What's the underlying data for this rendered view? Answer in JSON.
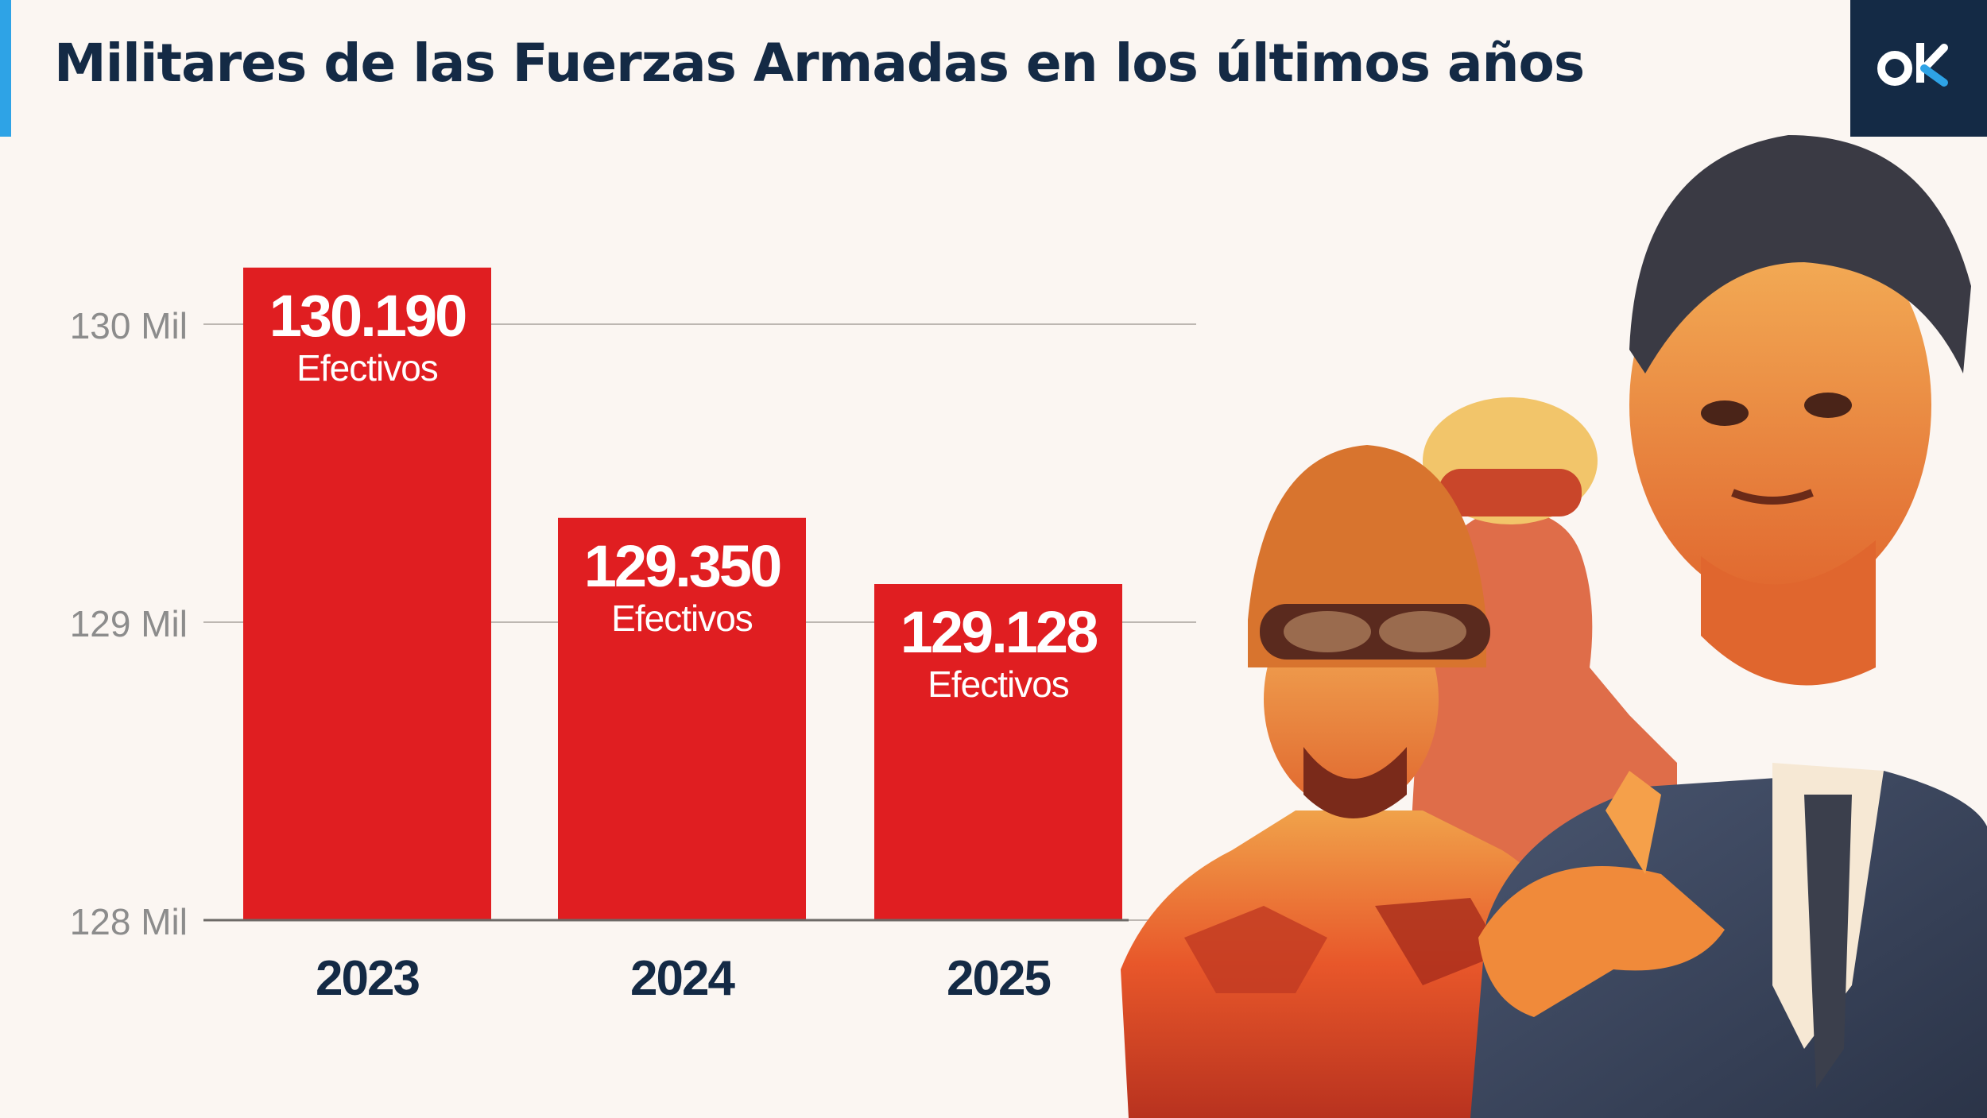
{
  "header": {
    "title": "Militares de las Fuerzas Armadas en los últimos años"
  },
  "logo": {
    "text": "ok"
  },
  "colors": {
    "bar": "#e01e21",
    "title": "#142a45",
    "accent": "#2ea3e6",
    "background": "#fbf6f2",
    "grid": "#bdb7b2",
    "tick_label": "#8c8c8c",
    "photo_warm": "#e8572a",
    "photo_dark": "#3d4a63"
  },
  "chart_data": {
    "type": "bar",
    "title": "Militares de las Fuerzas Armadas en los últimos años",
    "categories": [
      "2023",
      "2024",
      "2025"
    ],
    "values": [
      130190,
      129350,
      129128
    ],
    "data_labels": [
      {
        "value": "130.190",
        "unit": "Efectivos"
      },
      {
        "value": "129.350",
        "unit": "Efectivos"
      },
      {
        "value": "129.128",
        "unit": "Efectivos"
      }
    ],
    "ylim": [
      128000,
      130300
    ],
    "yticks": [
      {
        "value": 128000,
        "label": "128 Mil"
      },
      {
        "value": 129000,
        "label": "129 Mil"
      },
      {
        "value": 130000,
        "label": "130 Mil"
      }
    ],
    "xlabel": "",
    "ylabel": "",
    "grid": true,
    "legend": "none"
  },
  "image": {
    "description_icon": "soldiers-and-politician-photo"
  }
}
